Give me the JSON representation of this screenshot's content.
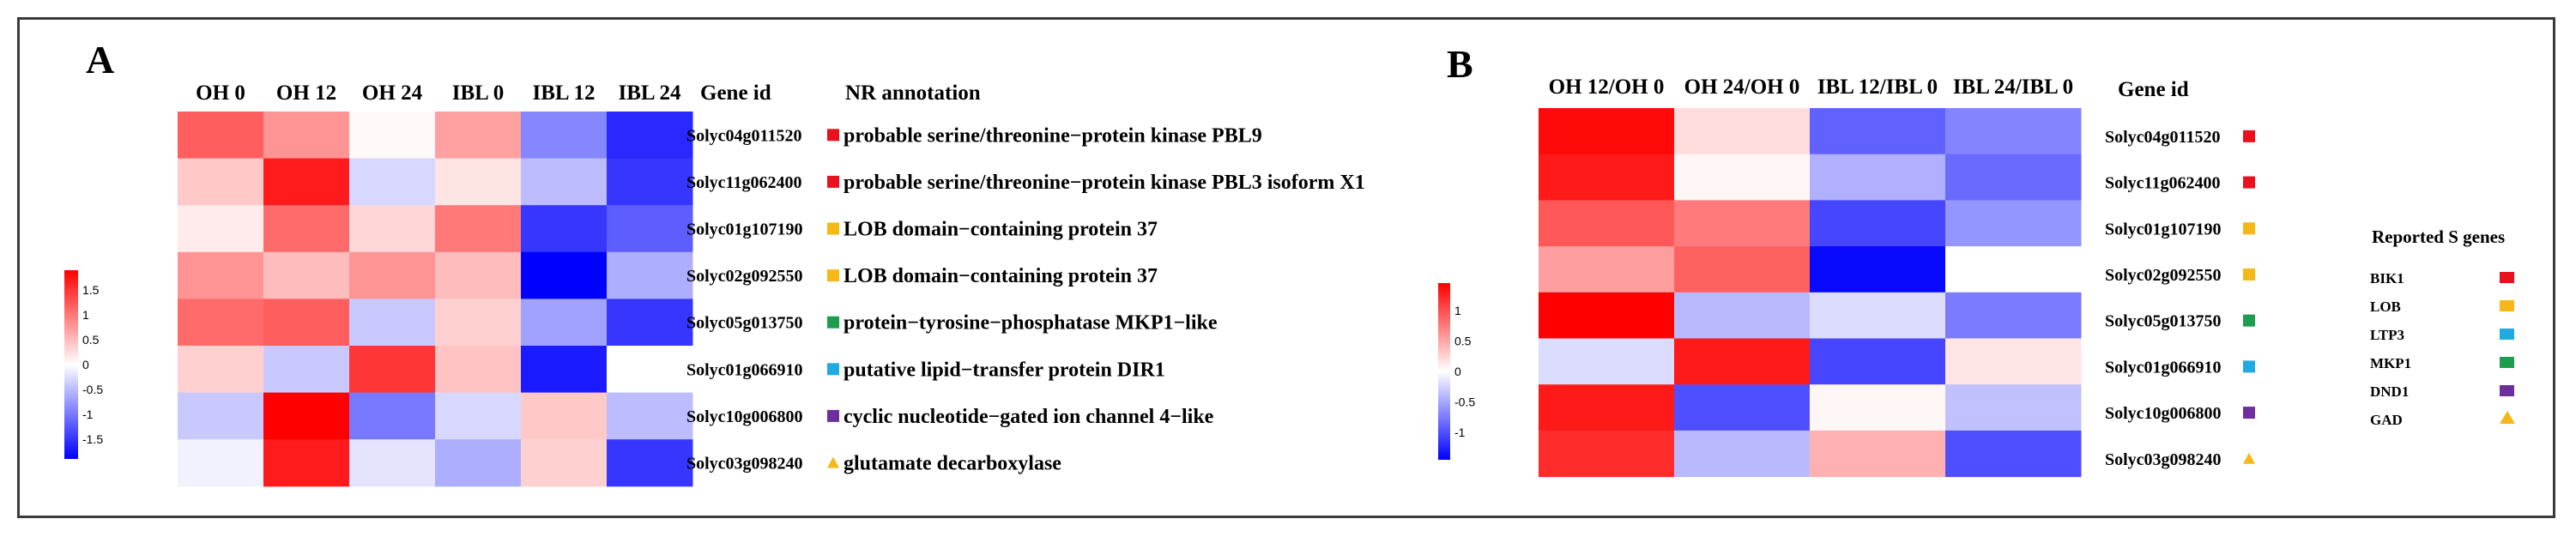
{
  "chart_data": [
    {
      "panel": "A",
      "type": "heatmap",
      "columns": [
        "OH 0",
        "OH 12",
        "OH 24",
        "IBL 0",
        "IBL 12",
        "IBL 24"
      ],
      "gene_header": "Gene id",
      "annotation_header": "NR annotation",
      "rows": [
        {
          "gene": "Solyc04g011520",
          "group": "BIK1",
          "annotation": "probable serine/threonine−protein kinase PBL9",
          "values": [
            1.2,
            0.8,
            0.05,
            0.7,
            -0.9,
            -1.6
          ]
        },
        {
          "gene": "Solyc11g062400",
          "group": "BIK1",
          "annotation": "probable serine/threonine−protein kinase PBL3 isoform X1",
          "values": [
            0.4,
            1.7,
            -0.3,
            0.2,
            -0.5,
            -1.5
          ]
        },
        {
          "gene": "Solyc01g107190",
          "group": "LOB",
          "annotation": "LOB domain−containing protein 37",
          "values": [
            0.15,
            1.1,
            0.3,
            1.0,
            -1.5,
            -1.2
          ]
        },
        {
          "gene": "Solyc02g092550",
          "group": "LOB",
          "annotation": "LOB domain−containing protein 37",
          "values": [
            0.8,
            0.5,
            0.8,
            0.5,
            -1.9,
            -0.6
          ]
        },
        {
          "gene": "Solyc05g013750",
          "group": "MKP1",
          "annotation": "protein−tyrosine−phosphatase MKP1−like",
          "values": [
            1.1,
            1.2,
            -0.4,
            0.35,
            -0.7,
            -1.5
          ]
        },
        {
          "gene": "Solyc01g066910",
          "group": "LTP3",
          "annotation": "putative lipid−transfer protein DIR1",
          "values": [
            0.35,
            -0.4,
            1.5,
            0.45,
            -1.7,
            0.0
          ]
        },
        {
          "gene": "Solyc10g006800",
          "group": "DND1",
          "annotation": "cyclic nucleotide−gated ion channel 4−like",
          "values": [
            -0.4,
            1.9,
            -1.0,
            -0.3,
            0.4,
            -0.5
          ]
        },
        {
          "gene": "Solyc03g098240",
          "group": "GAD",
          "annotation": "glutamate decarboxylase",
          "values": [
            -0.1,
            1.7,
            -0.2,
            -0.6,
            0.35,
            -1.5
          ]
        }
      ],
      "colorbar": {
        "min": -1.9,
        "max": 1.9,
        "ticks": [
          1.5,
          1,
          0.5,
          0,
          -0.5,
          -1,
          -1.5
        ],
        "tick_labels": [
          "1.5",
          "1",
          "0.5",
          "0",
          "-0.5",
          "-1",
          "-1.5"
        ]
      }
    },
    {
      "panel": "B",
      "type": "heatmap",
      "columns": [
        "OH 12/OH 0",
        "OH 24/OH 0",
        "IBL 12/IBL 0",
        "IBL 24/IBL 0"
      ],
      "gene_header": "Gene id",
      "rows": [
        {
          "gene": "Solyc04g011520",
          "group": "BIK1",
          "values": [
            1.4,
            0.2,
            -0.9,
            -0.7
          ]
        },
        {
          "gene": "Solyc11g062400",
          "group": "BIK1",
          "values": [
            1.3,
            0.05,
            -0.45,
            -0.85
          ]
        },
        {
          "gene": "Solyc01g107190",
          "group": "LOB",
          "values": [
            0.95,
            0.75,
            -1.05,
            -0.6
          ]
        },
        {
          "gene": "Solyc02g092550",
          "group": "LOB",
          "values": [
            0.55,
            0.9,
            -1.4,
            0.0
          ]
        },
        {
          "gene": "Solyc05g013750",
          "group": "MKP1",
          "values": [
            1.45,
            -0.4,
            -0.2,
            -0.75
          ]
        },
        {
          "gene": "Solyc01g066910",
          "group": "LTP3",
          "values": [
            -0.2,
            1.3,
            -1.05,
            0.15
          ]
        },
        {
          "gene": "Solyc10g006800",
          "group": "DND1",
          "values": [
            1.3,
            -1.0,
            0.05,
            -0.35
          ]
        },
        {
          "gene": "Solyc03g098240",
          "group": "GAD",
          "values": [
            1.2,
            -0.4,
            0.45,
            -1.0
          ]
        }
      ],
      "colorbar": {
        "min": -1.45,
        "max": 1.45,
        "ticks": [
          1,
          0.5,
          0,
          -0.5,
          -1
        ],
        "tick_labels": [
          "1",
          "0.5",
          "0",
          "-0.5",
          "-1"
        ]
      }
    }
  ],
  "panel_letters": [
    "A",
    "B"
  ],
  "legend": {
    "title": "Reported S genes",
    "items": [
      {
        "name": "BIK1",
        "color": "#e8121f",
        "marker": "square"
      },
      {
        "name": "LOB",
        "color": "#f5b817",
        "marker": "square"
      },
      {
        "name": "LTP3",
        "color": "#23a9e1",
        "marker": "square"
      },
      {
        "name": "MKP1",
        "color": "#1f9d4f",
        "marker": "square"
      },
      {
        "name": "DND1",
        "color": "#6d2f9c",
        "marker": "square"
      },
      {
        "name": "GAD",
        "color": "#f5b817",
        "marker": "triangle"
      }
    ]
  }
}
